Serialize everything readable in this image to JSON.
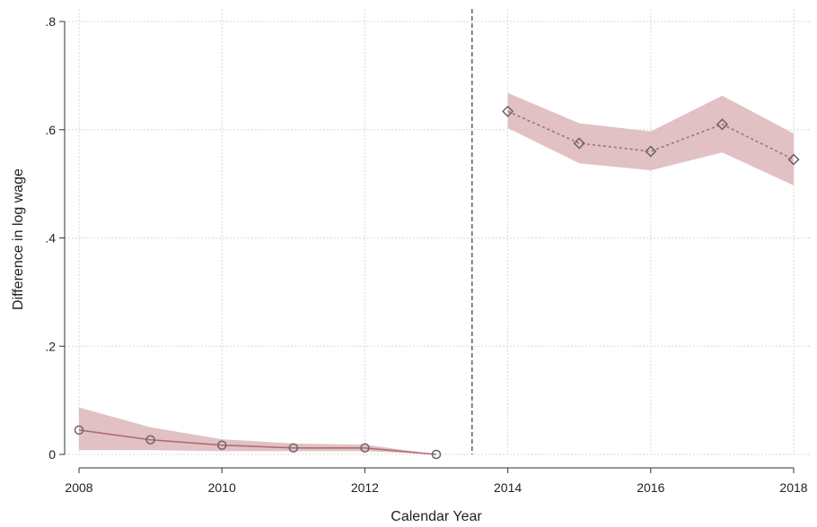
{
  "chart_data": {
    "type": "line",
    "xlabel": "Calendar Year",
    "ylabel": "Difference in log wage",
    "xlim": [
      2008,
      2018
    ],
    "ylim": [
      0,
      0.8
    ],
    "x_ticks": [
      {
        "value": 2008,
        "label": "2008"
      },
      {
        "value": 2010,
        "label": "2010"
      },
      {
        "value": 2012,
        "label": "2012"
      },
      {
        "value": 2014,
        "label": "2014"
      },
      {
        "value": 2016,
        "label": "2016"
      },
      {
        "value": 2018,
        "label": "2018"
      }
    ],
    "y_ticks": [
      {
        "value": 0,
        "label": "0"
      },
      {
        "value": 0.2,
        "label": ".2"
      },
      {
        "value": 0.4,
        "label": ".4"
      },
      {
        "value": 0.6,
        "label": ".6"
      },
      {
        "value": 0.8,
        "label": ".8"
      }
    ],
    "grid": true,
    "vertical_reference_line": {
      "x": 2013.5,
      "style": "dashed",
      "color": "#555555"
    },
    "series": [
      {
        "marker": "circle",
        "line_style": "solid",
        "line_color": "#b06b72",
        "band_color": "#dcb6ba",
        "marker_color": "#666666",
        "x": [
          2008,
          2009,
          2010,
          2011,
          2012,
          2013
        ],
        "y": [
          0.045,
          0.027,
          0.017,
          0.012,
          0.012,
          0.0
        ],
        "ci_upper": [
          0.087,
          0.05,
          0.028,
          0.02,
          0.018,
          0.0
        ],
        "ci_lower": [
          0.008,
          0.008,
          0.006,
          0.006,
          0.006,
          0.0
        ]
      },
      {
        "marker": "diamond",
        "line_style": "dotted",
        "line_color": "#b06b72",
        "band_color": "#dcb6ba",
        "marker_color": "#666666",
        "x": [
          2014,
          2015,
          2016,
          2017,
          2018
        ],
        "y": [
          0.634,
          0.575,
          0.56,
          0.61,
          0.545
        ],
        "ci_upper": [
          0.668,
          0.612,
          0.597,
          0.663,
          0.593
        ],
        "ci_lower": [
          0.603,
          0.538,
          0.525,
          0.558,
          0.497
        ]
      }
    ]
  }
}
